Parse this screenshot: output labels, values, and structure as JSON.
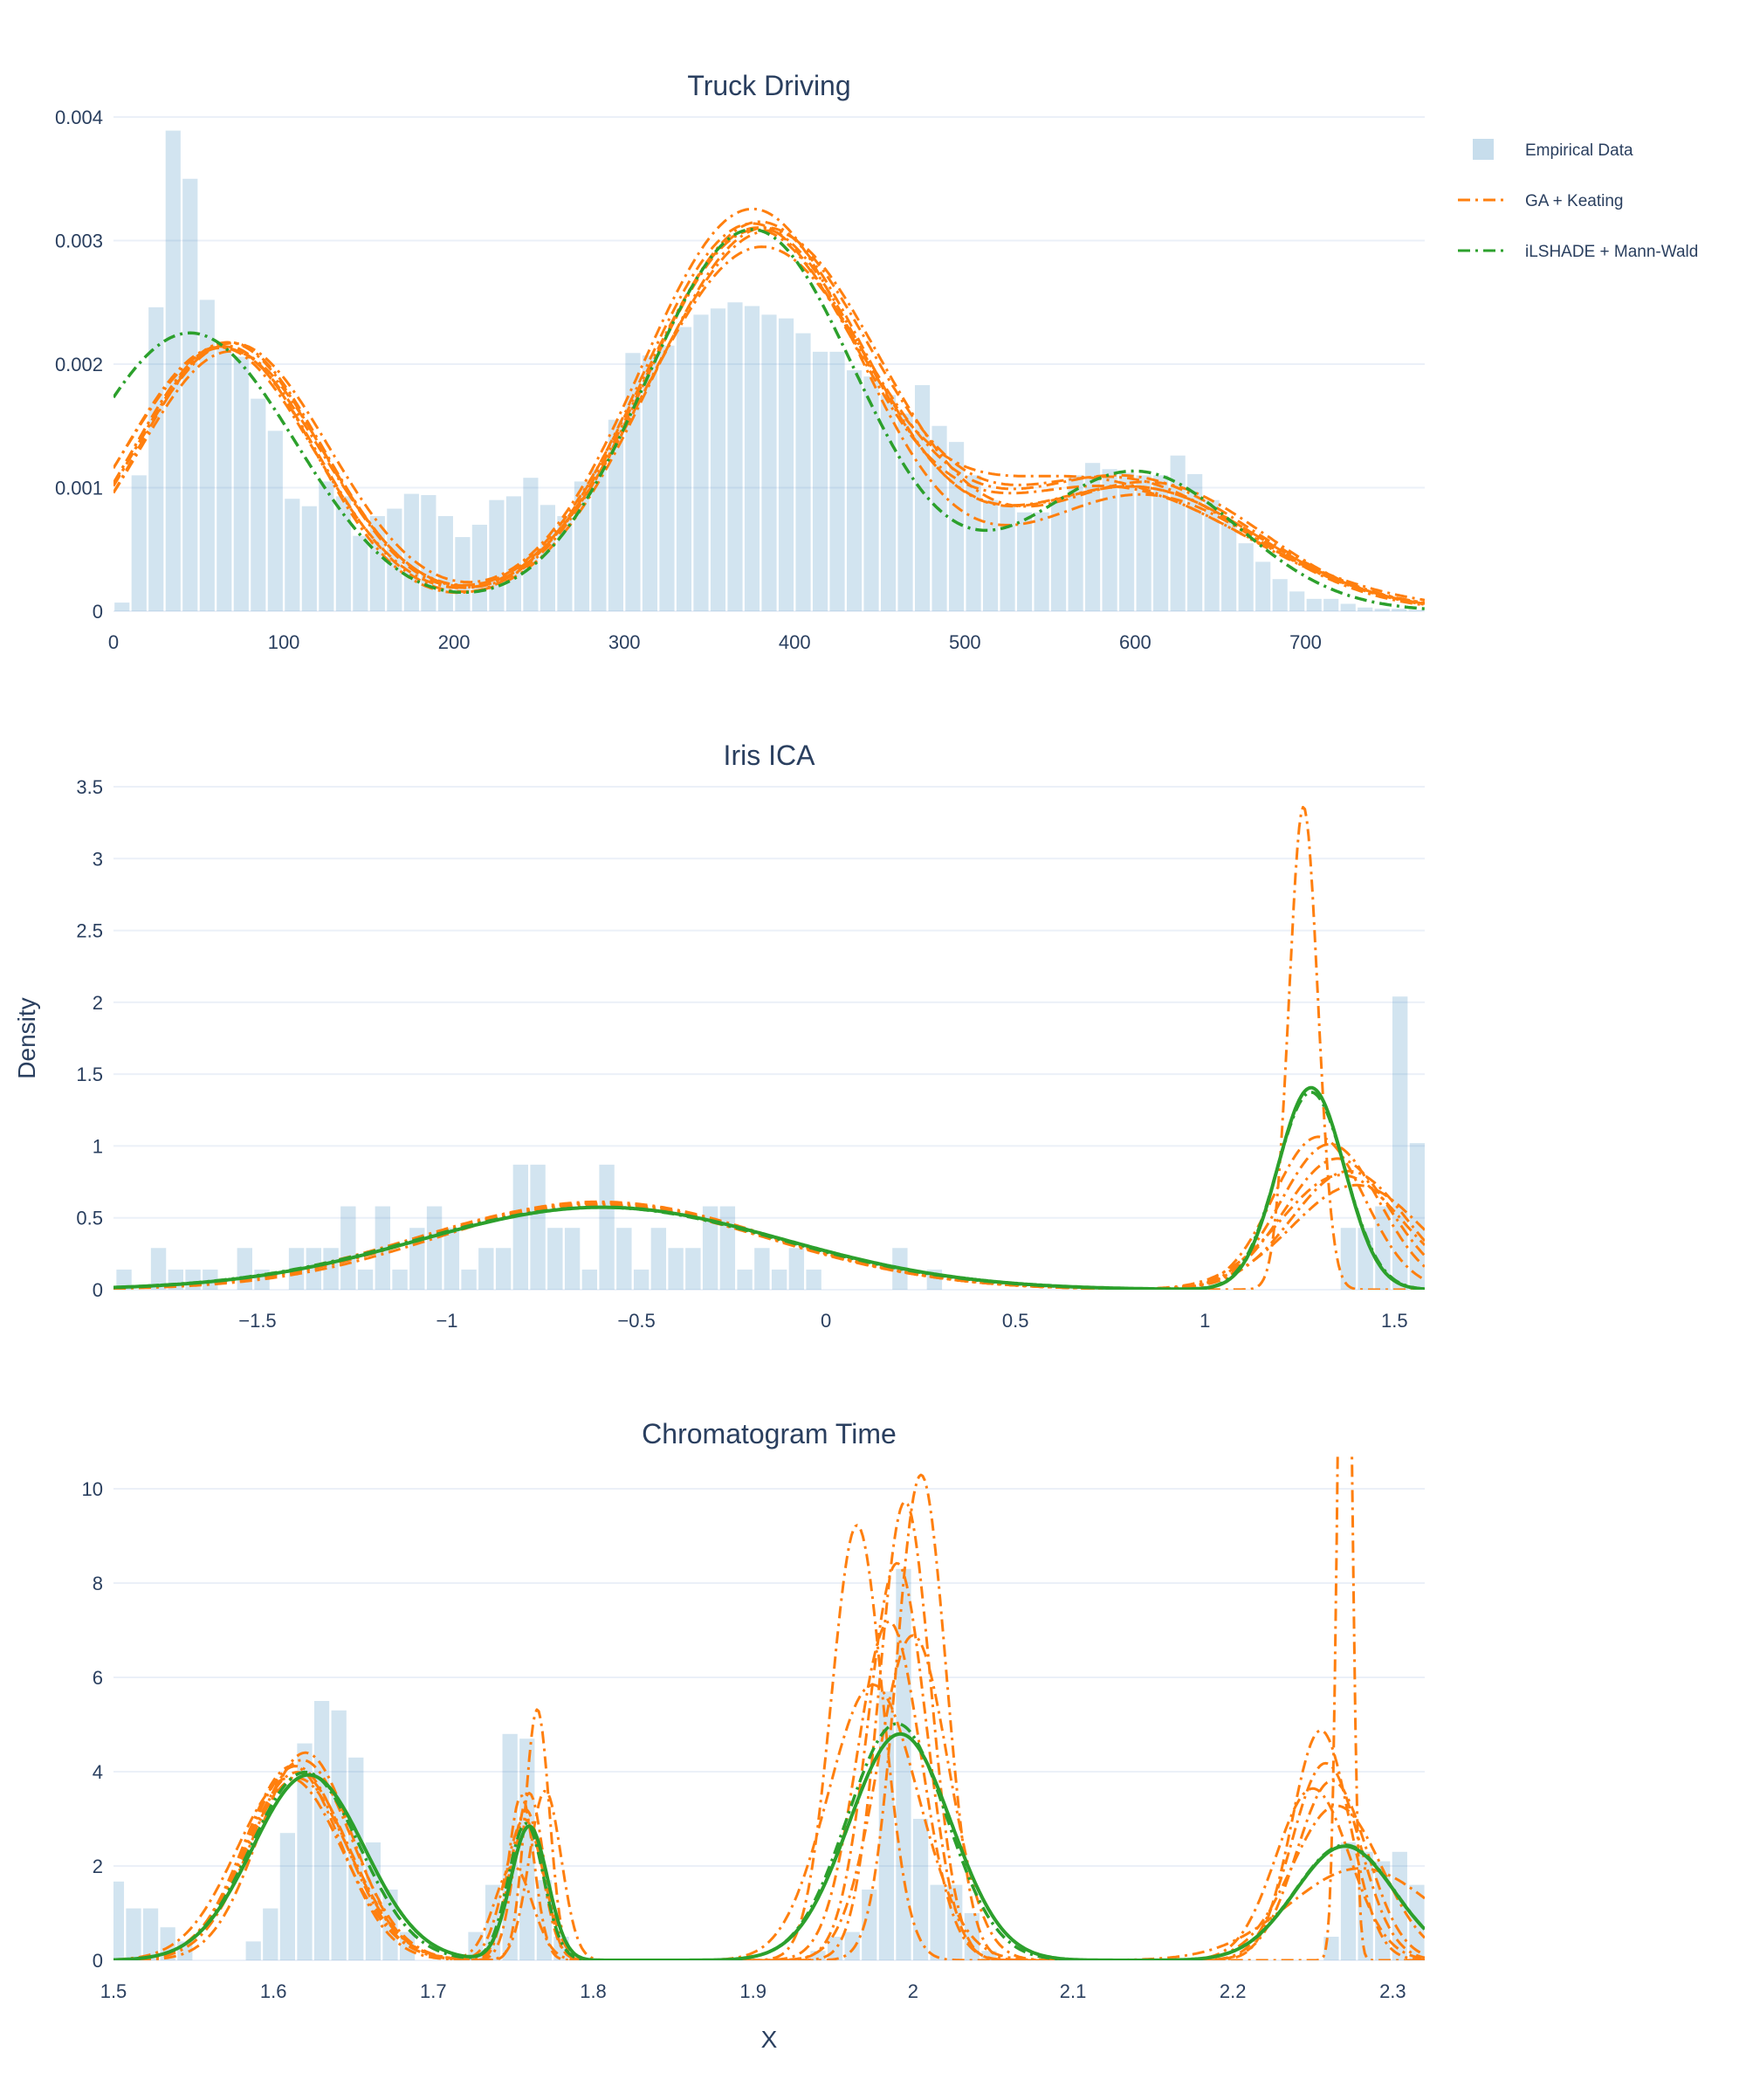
{
  "chart_data": [
    {
      "type": "bar",
      "title": "Truck Driving",
      "xlabel": "",
      "ylabel": "",
      "xlim": [
        0,
        770
      ],
      "ylim": [
        0,
        0.004
      ],
      "xticks": [
        0,
        100,
        200,
        300,
        400,
        500,
        600,
        700
      ],
      "xtick_labels": [
        "0",
        "100",
        "200",
        "300",
        "400",
        "500",
        "600",
        "700"
      ],
      "yticks": [
        0,
        0.001,
        0.002,
        0.003,
        0.004
      ],
      "ytick_labels": [
        "0",
        "0.001",
        "0.002",
        "0.003",
        "0.004"
      ],
      "grid": true,
      "hist": {
        "bin_start": 0,
        "bin_width": 10,
        "values": [
          7e-05,
          0.0011,
          0.00246,
          0.00389,
          0.0035,
          0.00252,
          0.00215,
          0.00206,
          0.00172,
          0.00146,
          0.00091,
          0.00085,
          0.00105,
          0.00093,
          0.00061,
          0.00077,
          0.00083,
          0.00095,
          0.00094,
          0.00077,
          0.0006,
          0.0007,
          0.0009,
          0.00093,
          0.00108,
          0.00086,
          0.00077,
          0.00105,
          0.00115,
          0.00155,
          0.00209,
          0.00207,
          0.00215,
          0.0023,
          0.0024,
          0.00245,
          0.0025,
          0.00247,
          0.0024,
          0.00237,
          0.00225,
          0.0021,
          0.0021,
          0.00195,
          0.0019,
          0.00175,
          0.0016,
          0.00183,
          0.0015,
          0.00137,
          0.0011,
          0.0009,
          0.00085,
          0.0008,
          0.0008,
          0.0009,
          0.0011,
          0.0012,
          0.00115,
          0.00112,
          0.0011,
          0.0011,
          0.00126,
          0.00111,
          0.0009,
          0.00072,
          0.00055,
          0.0004,
          0.00026,
          0.00016,
          0.0001,
          0.0001,
          6e-05,
          3e-05,
          2e-05,
          2e-05,
          1e-05
        ]
      },
      "orange_curves": [
        {
          "w": [
            0.3,
            0.52,
            0.18
          ],
          "m": [
            68,
            378,
            600
          ],
          "s": [
            55,
            67,
            72
          ]
        },
        {
          "w": [
            0.29,
            0.51,
            0.2
          ],
          "m": [
            65,
            382,
            590
          ],
          "s": [
            54,
            66,
            75
          ]
        },
        {
          "w": [
            0.31,
            0.53,
            0.16
          ],
          "m": [
            70,
            375,
            605
          ],
          "s": [
            57,
            65,
            68
          ]
        },
        {
          "w": [
            0.28,
            0.48,
            0.24
          ],
          "m": [
            66,
            372,
            570
          ],
          "s": [
            52,
            63,
            90
          ]
        },
        {
          "w": [
            0.3,
            0.5,
            0.2
          ],
          "m": [
            62,
            380,
            595
          ],
          "s": [
            56,
            68,
            74
          ]
        },
        {
          "w": [
            0.29,
            0.54,
            0.17
          ],
          "m": [
            69,
            385,
            610
          ],
          "s": [
            55,
            70,
            66
          ]
        },
        {
          "w": [
            0.31,
            0.49,
            0.2
          ],
          "m": [
            64,
            376,
            585
          ],
          "s": [
            58,
            64,
            80
          ]
        },
        {
          "w": [
            0.3,
            0.52,
            0.18
          ],
          "m": [
            67,
            379,
            600
          ],
          "s": [
            55,
            66,
            72
          ]
        }
      ],
      "green_curves": [
        {
          "w": [
            0.35,
            0.48,
            0.17
          ],
          "m": [
            45,
            375,
            600
          ],
          "s": [
            62,
            62,
            60
          ]
        }
      ]
    },
    {
      "type": "bar",
      "title": "Iris ICA",
      "xlabel": "",
      "ylabel": "Density",
      "xlim": [
        -1.88,
        1.58
      ],
      "ylim": [
        0,
        3.5
      ],
      "xticks": [
        -1.5,
        -1,
        -0.5,
        0,
        0.5,
        1,
        1.5
      ],
      "xtick_labels": [
        "−1.5",
        "−1",
        "−0.5",
        "0",
        "0.5",
        "1",
        "1.5"
      ],
      "yticks": [
        0,
        0.5,
        1,
        1.5,
        2,
        2.5,
        3,
        3.5
      ],
      "ytick_labels": [
        "0",
        "0.5",
        "1",
        "1.5",
        "2",
        "2.5",
        "3",
        "3.5"
      ],
      "grid": true,
      "hist": {
        "bin_start": -1.875,
        "bin_width": 0.0455,
        "values": [
          0.14,
          0,
          0.29,
          0.14,
          0.14,
          0.14,
          0,
          0.29,
          0.14,
          0,
          0.29,
          0.29,
          0.29,
          0.58,
          0.14,
          0.58,
          0.14,
          0.43,
          0.58,
          0.43,
          0.14,
          0.29,
          0.29,
          0.87,
          0.87,
          0.43,
          0.43,
          0.14,
          0.87,
          0.43,
          0.14,
          0.43,
          0.29,
          0.29,
          0.58,
          0.58,
          0.14,
          0.29,
          0.14,
          0.29,
          0.14,
          0,
          0,
          0,
          0,
          0.29,
          0,
          0.14,
          0,
          0,
          0,
          0,
          0,
          0,
          0,
          0,
          0,
          0,
          0,
          0,
          0,
          0,
          0,
          0,
          0,
          0,
          0,
          0,
          0,
          0,
          0,
          0.43,
          0.43,
          0.58,
          2.04,
          1.02,
          0.87,
          0.58,
          0.43,
          0.29,
          0.29
        ]
      },
      "orange_curves": [
        {
          "w": [
            0.68,
            0.32
          ],
          "m": [
            -0.6,
            1.36
          ],
          "s": [
            0.45,
            0.16
          ]
        },
        {
          "w": [
            0.69,
            0.31
          ],
          "m": [
            -0.62,
            1.38
          ],
          "s": [
            0.46,
            0.15
          ]
        },
        {
          "w": [
            0.67,
            0.33
          ],
          "m": [
            -0.58,
            1.33
          ],
          "s": [
            0.44,
            0.13
          ]
        },
        {
          "w": [
            0.68,
            0.32
          ],
          "m": [
            -0.6,
            1.3
          ],
          "s": [
            0.45,
            0.12
          ]
        },
        {
          "w": [
            0.68,
            0.32
          ],
          "m": [
            -0.61,
            1.35
          ],
          "s": [
            0.46,
            0.14
          ]
        },
        {
          "w": [
            0.69,
            0.31
          ],
          "m": [
            -0.6,
            1.4
          ],
          "s": [
            0.45,
            0.17
          ]
        },
        {
          "w": [
            0.68,
            0.32
          ],
          "m": [
            -0.6,
            1.26
          ],
          "s": [
            0.45,
            0.038
          ]
        }
      ],
      "green_curves": [
        {
          "w": [
            0.69,
            0.31
          ],
          "m": [
            -0.6,
            1.28
          ],
          "s": [
            0.48,
            0.09
          ]
        },
        {
          "w": [
            0.69,
            0.31
          ],
          "m": [
            -0.59,
            1.28
          ],
          "s": [
            0.48,
            0.088
          ]
        }
      ]
    },
    {
      "type": "bar",
      "title": "Chromatogram Time",
      "xlabel": "X",
      "ylabel": "",
      "xlim": [
        1.5,
        2.32
      ],
      "ylim": [
        0,
        10.5
      ],
      "xticks": [
        1.5,
        1.6,
        1.7,
        1.8,
        1.9,
        2,
        2.1,
        2.2,
        2.3
      ],
      "xtick_labels": [
        "1.5",
        "1.6",
        "1.7",
        "1.8",
        "1.9",
        "2",
        "2.1",
        "2.2",
        "2.3"
      ],
      "yticks": [
        0,
        2,
        4,
        6,
        8,
        10
      ],
      "ytick_labels": [
        "0",
        "2",
        "4",
        "6",
        "8",
        "10"
      ],
      "grid": true,
      "hist": {
        "bin_start": 1.4965,
        "bin_width": 0.0107,
        "values": [
          1.67,
          1.1,
          1.1,
          0.7,
          0.4,
          0,
          0,
          0,
          0.4,
          1.1,
          2.7,
          4.6,
          5.5,
          5.3,
          4.3,
          2.5,
          1.5,
          0.6,
          0,
          0,
          0,
          0.6,
          1.6,
          4.8,
          4.7,
          1.7,
          0.5,
          0,
          0,
          0,
          0,
          0,
          0,
          0,
          0,
          0,
          0,
          0,
          0,
          0,
          0,
          0.2,
          0.5,
          0.6,
          1.5,
          5.7,
          8.3,
          3.0,
          1.6,
          1.6,
          1.0,
          0.2,
          0,
          0,
          0,
          0,
          0,
          0,
          0,
          0,
          0,
          0,
          0,
          0,
          0,
          0,
          0,
          0,
          0,
          0,
          0,
          0.5,
          2.5,
          2.3,
          2.1,
          2.3,
          1.6,
          1.3,
          0.6,
          0
        ]
      },
      "orange_curves": [
        {
          "w": [
            0.32,
            0.09,
            0.38,
            0.21
          ],
          "m": [
            1.615,
            1.757,
            1.99,
            2.262
          ],
          "s": [
            0.032,
            0.012,
            0.018,
            0.022
          ]
        },
        {
          "w": [
            0.31,
            0.08,
            0.39,
            0.22
          ],
          "m": [
            1.612,
            1.76,
            1.995,
            2.255
          ],
          "s": [
            0.03,
            0.009,
            0.016,
            0.018
          ]
        },
        {
          "w": [
            0.33,
            0.1,
            0.37,
            0.2
          ],
          "m": [
            1.618,
            1.765,
            1.965,
            2.27
          ],
          "s": [
            0.031,
            0.0075,
            0.016,
            0.004
          ]
        },
        {
          "w": [
            0.32,
            0.07,
            0.4,
            0.21
          ],
          "m": [
            1.61,
            1.755,
            2.005,
            2.25
          ],
          "s": [
            0.033,
            0.008,
            0.0155,
            0.023
          ]
        },
        {
          "w": [
            0.32,
            0.09,
            0.36,
            0.23
          ],
          "m": [
            1.62,
            1.77,
            1.985,
            2.265
          ],
          "s": [
            0.029,
            0.01,
            0.02,
            0.028
          ]
        },
        {
          "w": [
            0.31,
            0.06,
            0.41,
            0.22
          ],
          "m": [
            1.615,
            1.75,
            1.975,
            2.28
          ],
          "s": [
            0.032,
            0.012,
            0.028,
            0.045
          ]
        },
        {
          "w": [
            0.32,
            0.08,
            0.38,
            0.22
          ],
          "m": [
            1.614,
            1.758,
            2.0,
            2.258
          ],
          "s": [
            0.031,
            0.01,
            0.022,
            0.021
          ]
        }
      ],
      "green_curves": [
        {
          "w": [
            0.34,
            0.08,
            0.39,
            0.19
          ],
          "m": [
            1.62,
            1.758,
            1.99,
            2.27
          ],
          "s": [
            0.034,
            0.011,
            0.031,
            0.031
          ]
        },
        {
          "w": [
            0.345,
            0.082,
            0.385,
            0.188
          ],
          "m": [
            1.622,
            1.76,
            1.992,
            2.27
          ],
          "s": [
            0.035,
            0.0115,
            0.032,
            0.031
          ]
        }
      ]
    }
  ],
  "legend": {
    "placement": "top-right",
    "items": [
      {
        "label": "Empirical Data",
        "color": "#1f77b4",
        "kind": "bar"
      },
      {
        "label": "GA + Keating",
        "color": "#ff7f0e",
        "kind": "dashdot"
      },
      {
        "label": "iLSHADE + Mann-Wald",
        "color": "#2ca02c",
        "kind": "dashdot"
      }
    ]
  },
  "colors": {
    "bar": "#1f77b4",
    "orange": "#ff7f0e",
    "green": "#2ca02c",
    "grid": "#ebf0f8",
    "text": "#2a3f5f"
  }
}
